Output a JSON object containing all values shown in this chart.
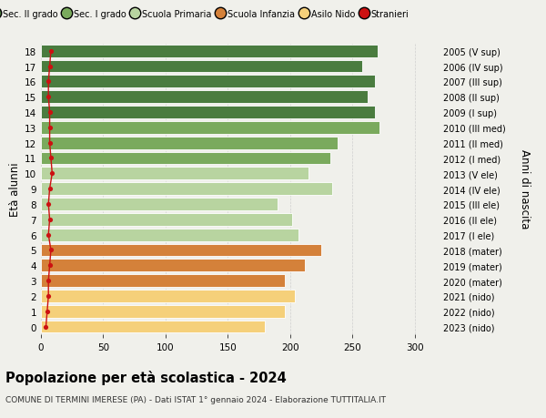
{
  "ages": [
    18,
    17,
    16,
    15,
    14,
    13,
    12,
    11,
    10,
    9,
    8,
    7,
    6,
    5,
    4,
    3,
    2,
    1,
    0
  ],
  "anni_nascita": [
    "2005 (V sup)",
    "2006 (IV sup)",
    "2007 (III sup)",
    "2008 (II sup)",
    "2009 (I sup)",
    "2010 (III med)",
    "2011 (II med)",
    "2012 (I med)",
    "2013 (V ele)",
    "2014 (IV ele)",
    "2015 (III ele)",
    "2016 (II ele)",
    "2017 (I ele)",
    "2018 (mater)",
    "2019 (mater)",
    "2020 (mater)",
    "2021 (nido)",
    "2022 (nido)",
    "2023 (nido)"
  ],
  "values": [
    270,
    258,
    268,
    262,
    268,
    272,
    238,
    232,
    215,
    234,
    190,
    202,
    207,
    225,
    212,
    196,
    204,
    196,
    180
  ],
  "stranieri": [
    8,
    7,
    6,
    6,
    7,
    7,
    7,
    8,
    9,
    7,
    6,
    7,
    6,
    8,
    7,
    6,
    6,
    5,
    4
  ],
  "bar_colors_by_age": {
    "18": "#4a7c3f",
    "17": "#4a7c3f",
    "16": "#4a7c3f",
    "15": "#4a7c3f",
    "14": "#4a7c3f",
    "13": "#7aaa5d",
    "12": "#7aaa5d",
    "11": "#7aaa5d",
    "10": "#b8d4a0",
    "9": "#b8d4a0",
    "8": "#b8d4a0",
    "7": "#b8d4a0",
    "6": "#b8d4a0",
    "5": "#d4813a",
    "4": "#d4813a",
    "3": "#d4813a",
    "2": "#f5d07a",
    "1": "#f5d07a",
    "0": "#f5d07a"
  },
  "title": "Popolazione per età scolastica - 2024",
  "subtitle": "COMUNE DI TERMINI IMERESE (PA) - Dati ISTAT 1° gennaio 2024 - Elaborazione TUTTITALIA.IT",
  "ylabel": "Età alunni",
  "right_label": "Anni di nascita",
  "xlim": [
    0,
    320
  ],
  "xticks": [
    0,
    50,
    100,
    150,
    200,
    250,
    300
  ],
  "legend_labels": [
    "Sec. II grado",
    "Sec. I grado",
    "Scuola Primaria",
    "Scuola Infanzia",
    "Asilo Nido",
    "Stranieri"
  ],
  "legend_colors": [
    "#4a7c3f",
    "#7aaa5d",
    "#b8d4a0",
    "#d4813a",
    "#f5d07a",
    "#cc1111"
  ],
  "bg_color": "#f0f0eb",
  "bar_height": 0.82,
  "stranieri_color": "#cc1111",
  "grid_color": "#cccccc"
}
